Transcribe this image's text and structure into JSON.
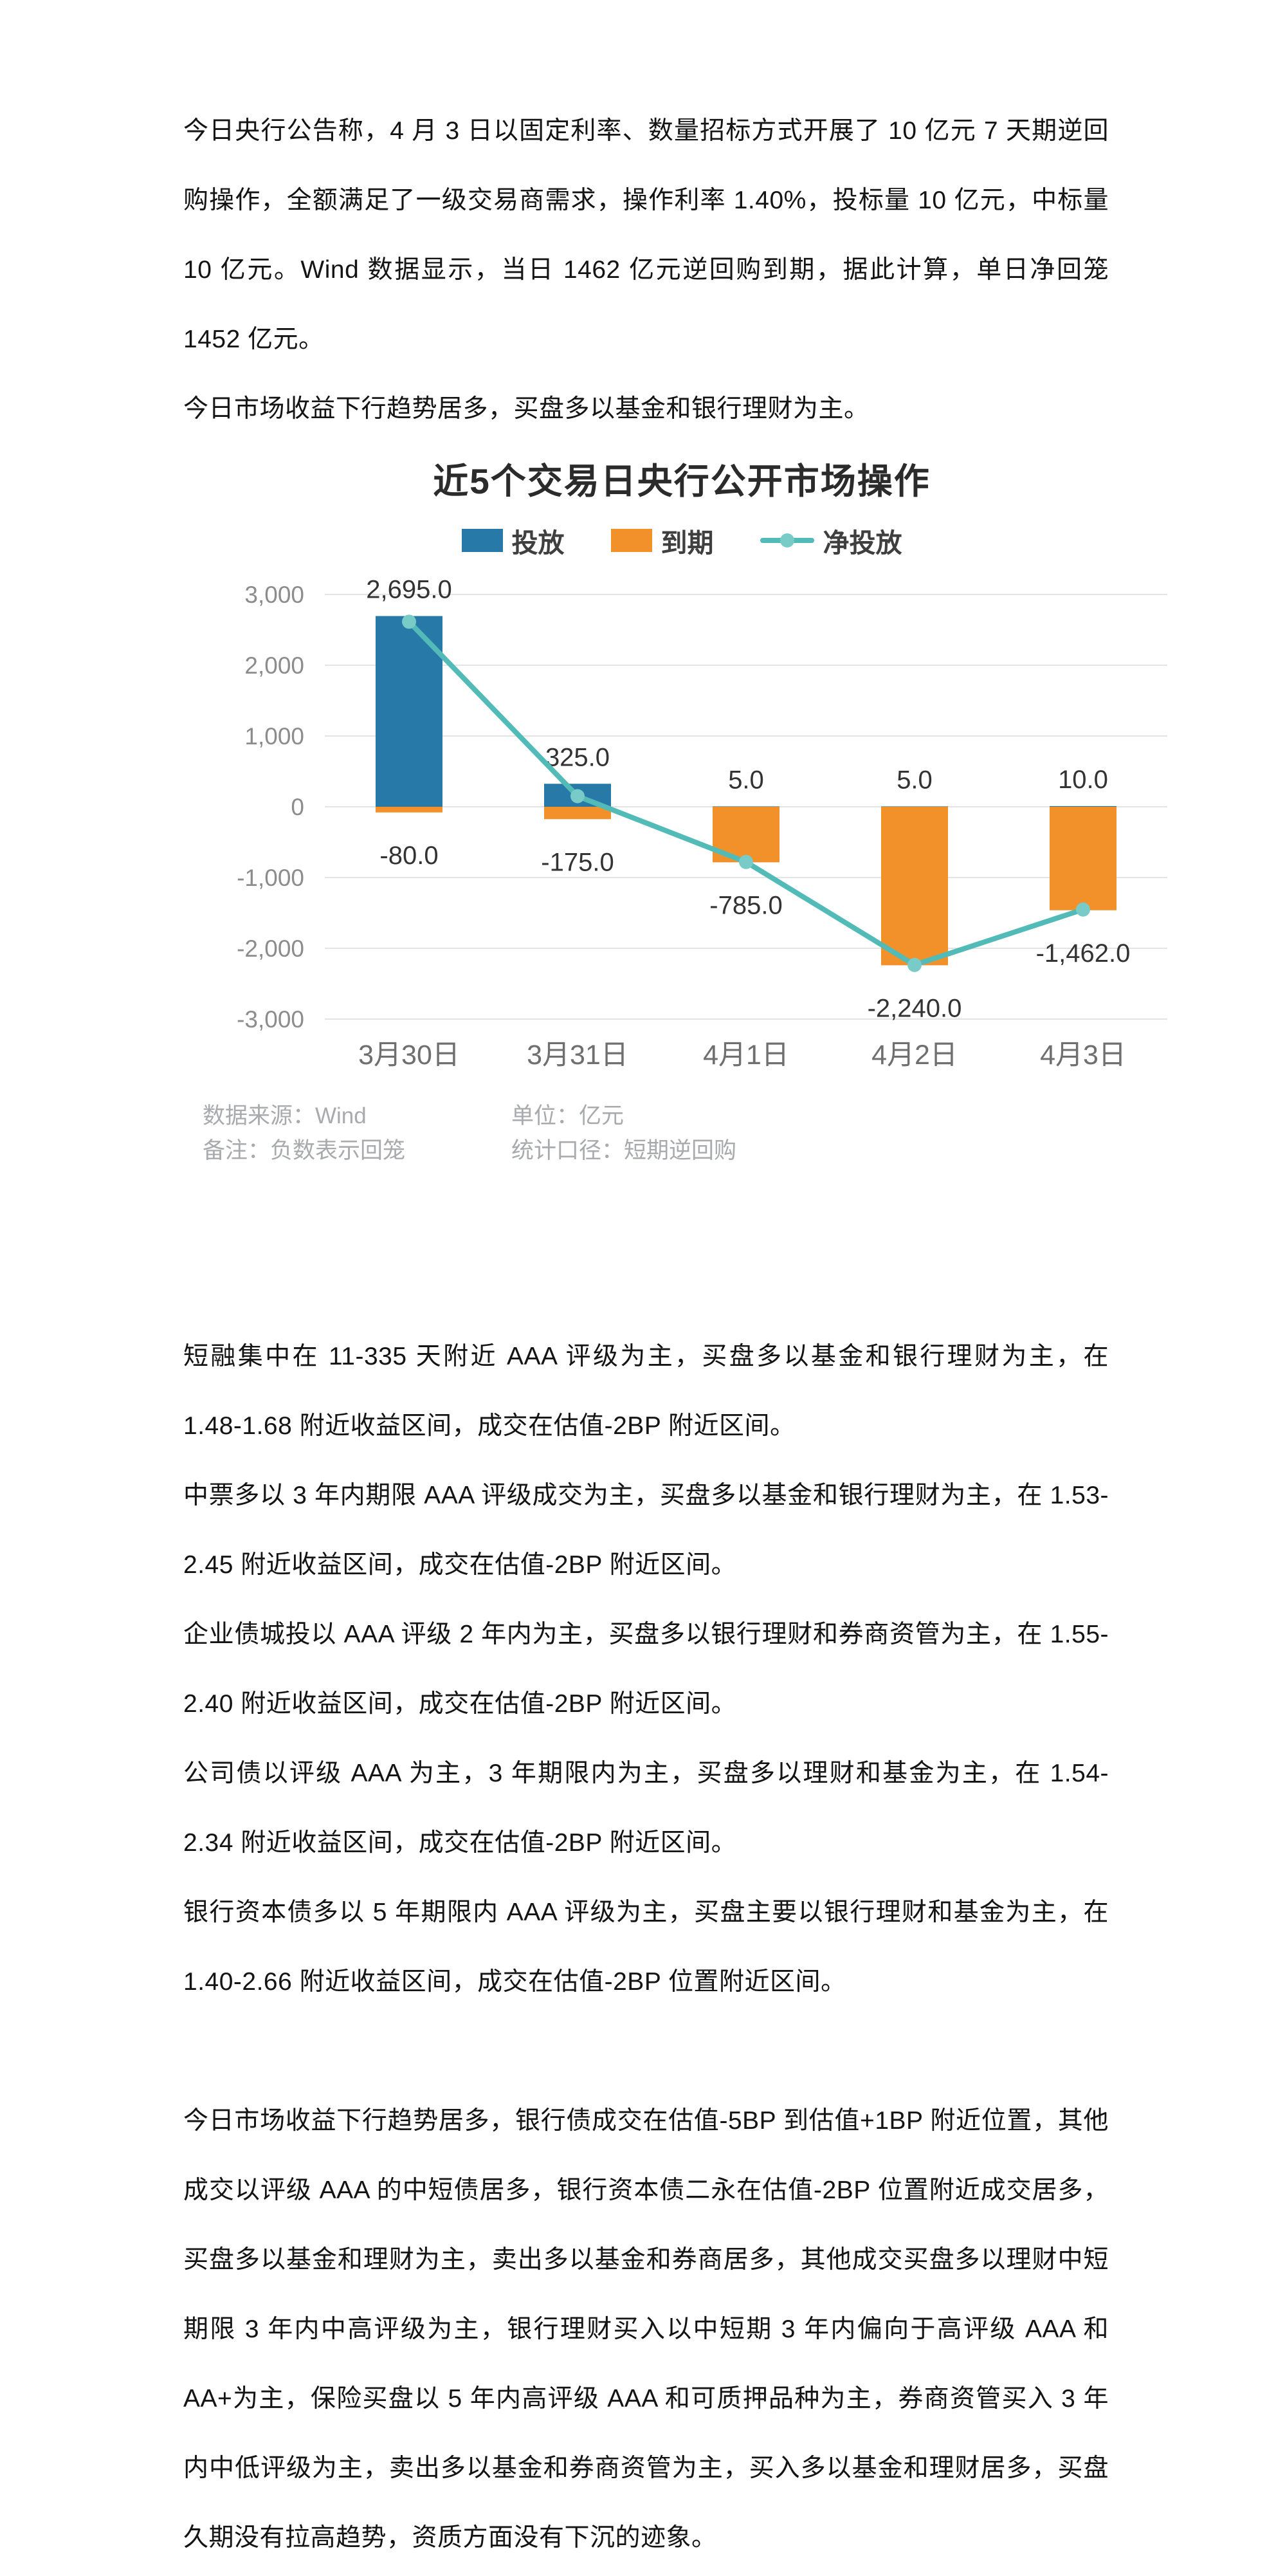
{
  "document": {
    "paragraphs": [
      "今日央行公告称，4 月 3 日以固定利率、数量招标方式开展了 10 亿元 7 天期逆回购操作，全额满足了一级交易商需求，操作利率 1.40%，投标量 10 亿元，中标量 10 亿元。Wind 数据显示，当日 1462 亿元逆回购到期，据此计算，单日净回笼 1452 亿元。",
      "今日市场收益下行趋势居多，买盘多以基金和银行理财为主。",
      "短融集中在 11-335 天附近 AAA 评级为主，买盘多以基金和银行理财为主，在 1.48-1.68 附近收益区间，成交在估值-2BP 附近区间。",
      "中票多以 3 年内期限 AAA 评级成交为主，买盘多以基金和银行理财为主，在 1.53-2.45 附近收益区间，成交在估值-2BP 附近区间。",
      "企业债城投以 AAA 评级 2 年内为主，买盘多以银行理财和券商资管为主，在 1.55-2.40 附近收益区间，成交在估值-2BP 附近区间。",
      "公司债以评级 AAA 为主，3 年期限内为主，买盘多以理财和基金为主，在 1.54-2.34 附近收益区间，成交在估值-2BP 附近区间。",
      "银行资本债多以 5 年期限内 AAA 评级为主，买盘主要以银行理财和基金为主，在 1.40-2.66 附近收益区间，成交在估值-2BP 位置附近区间。",
      "今日市场收益下行趋势居多，银行债成交在估值-5BP 到估值+1BP 附近位置，其他成交以评级 AAA 的中短债居多，银行资本债二永在估值-2BP 位置附近成交居多，买盘多以基金和理财为主，卖出多以基金和券商居多，其他成交买盘多以理财中短期限 3 年内中高评级为主，银行理财买入以中短期 3 年内偏向于高评级 AAA 和 AA+为主，保险买盘以 5 年内高评级 AAA 和可质押品种为主，券商资管买入 3 年内中低评级为主，卖出多以基金和券商资管为主，买入多以基金和理财居多，买盘久期没有拉高趋势，资质方面没有下沉的迹象。"
    ]
  },
  "chart": {
    "footer": {
      "source": "数据来源：Wind",
      "unit": "单位：亿元",
      "note": "备注：负数表示回笼",
      "scope": "统计口径：短期逆回购"
    }
  },
  "chart_data": {
    "type": "bar",
    "title": "近5个交易日央行公开市场操作",
    "categories": [
      "3月30日",
      "3月31日",
      "4月1日",
      "4月2日",
      "4月3日"
    ],
    "series": [
      {
        "name": "投放",
        "type": "bar",
        "color": "#2779a7",
        "values": [
          2695,
          325,
          5,
          5,
          10
        ],
        "labels": [
          "2,695.0",
          "325.0",
          "5.0",
          "5.0",
          "10.0"
        ]
      },
      {
        "name": "到期",
        "type": "bar",
        "color": "#f2912a",
        "values": [
          -80,
          -175,
          -785,
          -2240,
          -1462
        ],
        "labels": [
          "-80.0",
          "-175.0",
          "-785.0",
          "-2,240.0",
          "-1,462.0"
        ]
      },
      {
        "name": "净投放",
        "type": "line",
        "color": "#53bbb7",
        "marker_color": "#79cbc7",
        "values": [
          2615,
          150,
          -780,
          -2235,
          -1452
        ],
        "labels": []
      }
    ],
    "ylim": [
      -3000,
      3000
    ],
    "yticks": [
      3000,
      2000,
      1000,
      0,
      -1000,
      -2000,
      -3000
    ],
    "ytick_labels": [
      "3,000",
      "2,000",
      "1,000",
      "0",
      "-1,000",
      "-2,000",
      "-3,000"
    ],
    "unit": "亿元",
    "grid": true,
    "legend_position": "top",
    "colors": {
      "grid": "#e4e4e4",
      "ytick": "#8c8c8c",
      "xtick": "#6f6f6f",
      "data_label": "#333333"
    }
  }
}
